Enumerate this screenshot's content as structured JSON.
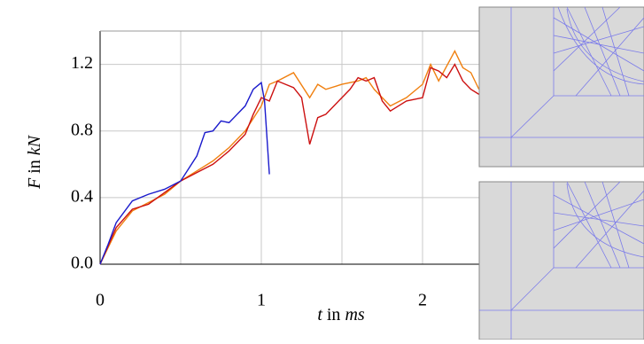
{
  "chart_data": {
    "type": "line",
    "xlabel": [
      "t",
      " in ",
      "ms"
    ],
    "ylabel": [
      "F",
      " in ",
      "kN"
    ],
    "xlim": [
      0,
      2.5
    ],
    "ylim": [
      0,
      1.4
    ],
    "xticks": [
      0,
      1,
      2
    ],
    "xgrid": [
      0.5,
      1.5
    ],
    "yticks": [
      {
        "value": 0,
        "label": "0.0"
      },
      0.4,
      0.8,
      1.2
    ],
    "grid": true,
    "series": [
      {
        "color": "#1a1acc",
        "x": [
          0,
          0.05,
          0.1,
          0.2,
          0.3,
          0.4,
          0.5,
          0.6,
          0.65,
          0.7,
          0.75,
          0.8,
          0.85,
          0.9,
          0.95,
          1.0,
          1.02,
          1.05
        ],
        "values": [
          0,
          0.12,
          0.25,
          0.38,
          0.42,
          0.45,
          0.5,
          0.65,
          0.79,
          0.8,
          0.86,
          0.85,
          0.9,
          0.95,
          1.05,
          1.09,
          0.98,
          0.54
        ]
      },
      {
        "color": "#cc1010",
        "x": [
          0,
          0.1,
          0.2,
          0.3,
          0.4,
          0.5,
          0.6,
          0.7,
          0.8,
          0.9,
          0.95,
          1.0,
          1.05,
          1.1,
          1.15,
          1.2,
          1.25,
          1.3,
          1.35,
          1.4,
          1.5,
          1.55,
          1.6,
          1.65,
          1.7,
          1.75,
          1.8,
          1.85,
          1.9,
          2.0,
          2.05,
          2.1,
          2.15,
          2.2,
          2.25,
          2.3,
          2.35
        ],
        "values": [
          0,
          0.22,
          0.33,
          0.36,
          0.43,
          0.5,
          0.55,
          0.6,
          0.68,
          0.78,
          0.9,
          1.0,
          0.98,
          1.1,
          1.08,
          1.06,
          1.0,
          0.72,
          0.88,
          0.9,
          1.0,
          1.05,
          1.12,
          1.1,
          1.12,
          0.98,
          0.92,
          0.95,
          0.98,
          1.0,
          1.18,
          1.16,
          1.12,
          1.2,
          1.1,
          1.05,
          1.02
        ]
      },
      {
        "color": "#f08010",
        "x": [
          0,
          0.1,
          0.2,
          0.3,
          0.4,
          0.5,
          0.6,
          0.7,
          0.8,
          0.9,
          1.0,
          1.05,
          1.1,
          1.2,
          1.3,
          1.35,
          1.4,
          1.5,
          1.6,
          1.65,
          1.7,
          1.8,
          1.9,
          2.0,
          2.05,
          2.1,
          2.2,
          2.25,
          2.3,
          2.35
        ],
        "values": [
          0,
          0.2,
          0.32,
          0.37,
          0.42,
          0.5,
          0.56,
          0.62,
          0.7,
          0.8,
          0.95,
          1.08,
          1.1,
          1.15,
          1.0,
          1.08,
          1.05,
          1.08,
          1.1,
          1.12,
          1.05,
          0.95,
          1.0,
          1.08,
          1.2,
          1.1,
          1.28,
          1.18,
          1.15,
          1.05
        ]
      }
    ]
  }
}
